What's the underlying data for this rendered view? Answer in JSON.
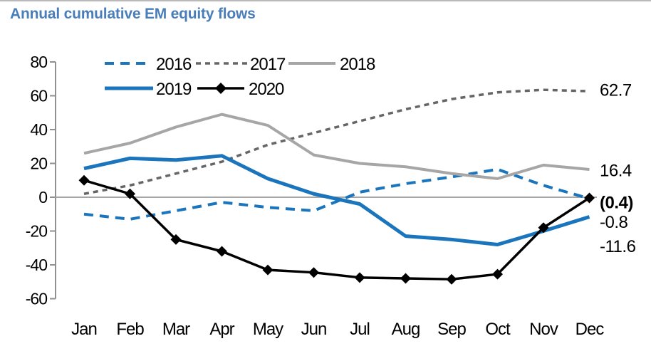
{
  "page": {
    "title": "Annual cumulative EM equity flows",
    "title_color": "#4a7eba"
  },
  "chart_data": {
    "type": "line",
    "title": "Annual cumulative EM equity flows",
    "categories": [
      "Jan",
      "Feb",
      "Mar",
      "Apr",
      "May",
      "Jun",
      "Jul",
      "Aug",
      "Sep",
      "Oct",
      "Nov",
      "Dec"
    ],
    "ylim": [
      -60,
      80
    ],
    "yticks": [
      80,
      60,
      40,
      20,
      0,
      -20,
      -40,
      -60
    ],
    "grid": "horizontal zero line only",
    "legend_position": "top inside plot, two rows",
    "axis_color": "#909090",
    "zero_line_color": "#a6a6a6",
    "series": [
      {
        "name": "2016",
        "color": "#1b75bc",
        "line": "dashed",
        "dash": "13 9",
        "width": 4,
        "values": [
          -10,
          -13,
          -8,
          -3,
          -6,
          -8,
          3,
          8,
          12,
          16.5,
          7,
          -0.8
        ]
      },
      {
        "name": "2017",
        "color": "#666666",
        "line": "dashed",
        "dash": "7 6",
        "width": 3.5,
        "values": [
          2,
          7,
          14,
          21,
          31,
          38,
          45,
          52,
          58,
          62,
          63.5,
          62.7
        ]
      },
      {
        "name": "2018",
        "color": "#a6a6a6",
        "line": "solid",
        "dash": "",
        "width": 4,
        "values": [
          26,
          32,
          41.5,
          49,
          42.5,
          25,
          20,
          18,
          14,
          11,
          19,
          16.4
        ]
      },
      {
        "name": "2019",
        "color": "#1b75bc",
        "line": "solid",
        "dash": "",
        "width": 5,
        "values": [
          17,
          23,
          22,
          24.5,
          11,
          2,
          -4,
          -23,
          -25,
          -28,
          -20,
          -11.6
        ]
      },
      {
        "name": "2020",
        "color": "#000000",
        "line": "solid",
        "dash": "",
        "width": 3.5,
        "marker": "diamond",
        "values": [
          10,
          2,
          -25,
          -32,
          -43,
          -44.5,
          -47.5,
          -48,
          -48.5,
          -45.5,
          -18,
          -0.4
        ]
      }
    ],
    "end_labels": [
      {
        "text": "62.7",
        "series": "2017",
        "color": "#000000",
        "bold": false,
        "anchor_value": 60
      },
      {
        "text": "16.4",
        "series": "2018",
        "color": "#000000",
        "bold": false,
        "anchor_value": 12.5
      },
      {
        "text": "(0.4)",
        "series": "2020",
        "color": "#e30613",
        "bold": true,
        "anchor_value": -6.5
      },
      {
        "text": "-0.8",
        "series": "2016",
        "color": "#000000",
        "bold": false,
        "anchor_value": -18
      },
      {
        "text": "-11.6",
        "series": "2019",
        "color": "#000000",
        "bold": false,
        "anchor_value": -32.5
      }
    ],
    "legend_rows": [
      [
        "2016",
        "2017",
        "2018"
      ],
      [
        "2019",
        "2020"
      ]
    ]
  }
}
